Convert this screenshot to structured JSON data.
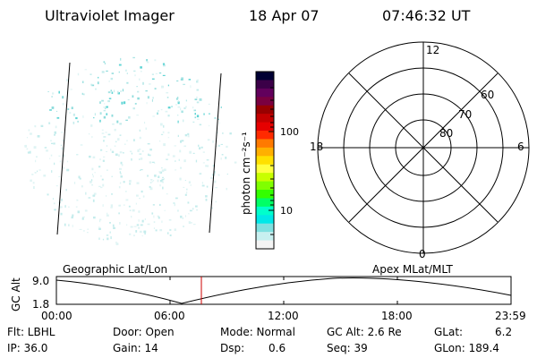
{
  "header": {
    "instrument": "Ultraviolet Imager",
    "date": "18 Apr 07",
    "time": "07:46:32 UT"
  },
  "colorbar": {
    "unit_label": "photon cm⁻²s⁻¹",
    "ticks": [
      "100",
      "10"
    ],
    "colors": [
      "#000033",
      "#3b0048",
      "#62005c",
      "#7a0040",
      "#990000",
      "#c40000",
      "#e60000",
      "#ff2a00",
      "#ff7a00",
      "#ffb000",
      "#ffe000",
      "#ffff40",
      "#c8ff00",
      "#80ff00",
      "#33ff00",
      "#00ff66",
      "#00ffcc",
      "#00e8e8",
      "#7fe0e0",
      "#c8f0f0",
      "#f4f4f4"
    ]
  },
  "polar_plot": {
    "clock_labels": {
      "top": "12",
      "left": "18",
      "right": "6",
      "bottom": "0"
    },
    "lat_labels": [
      "60",
      "70",
      "80"
    ]
  },
  "alt_plot": {
    "left_title": "Geographic Lat/Lon",
    "right_title": "Apex MLat/MLT",
    "ylabel": "GC Alt",
    "ytick_top": "9.0",
    "ytick_bottom": "1.8",
    "xticks": [
      "00:00",
      "06:00",
      "12:00",
      "18:00",
      "23:59"
    ],
    "marker_color": "#cc0000"
  },
  "status": {
    "flt": "Flt: LBHL",
    "ip": "IP: 36.0",
    "door": "Door: Open",
    "gain": "Gain: 14",
    "mode": "Mode: Normal",
    "dsp_label": "Dsp:",
    "dsp_value": "0.6",
    "gc_alt": "GC Alt: 2.6 Re",
    "seq": "Seq: 39",
    "glat_label": "GLat:",
    "glat_value": "6.2",
    "glon": "GLon: 189.4"
  }
}
